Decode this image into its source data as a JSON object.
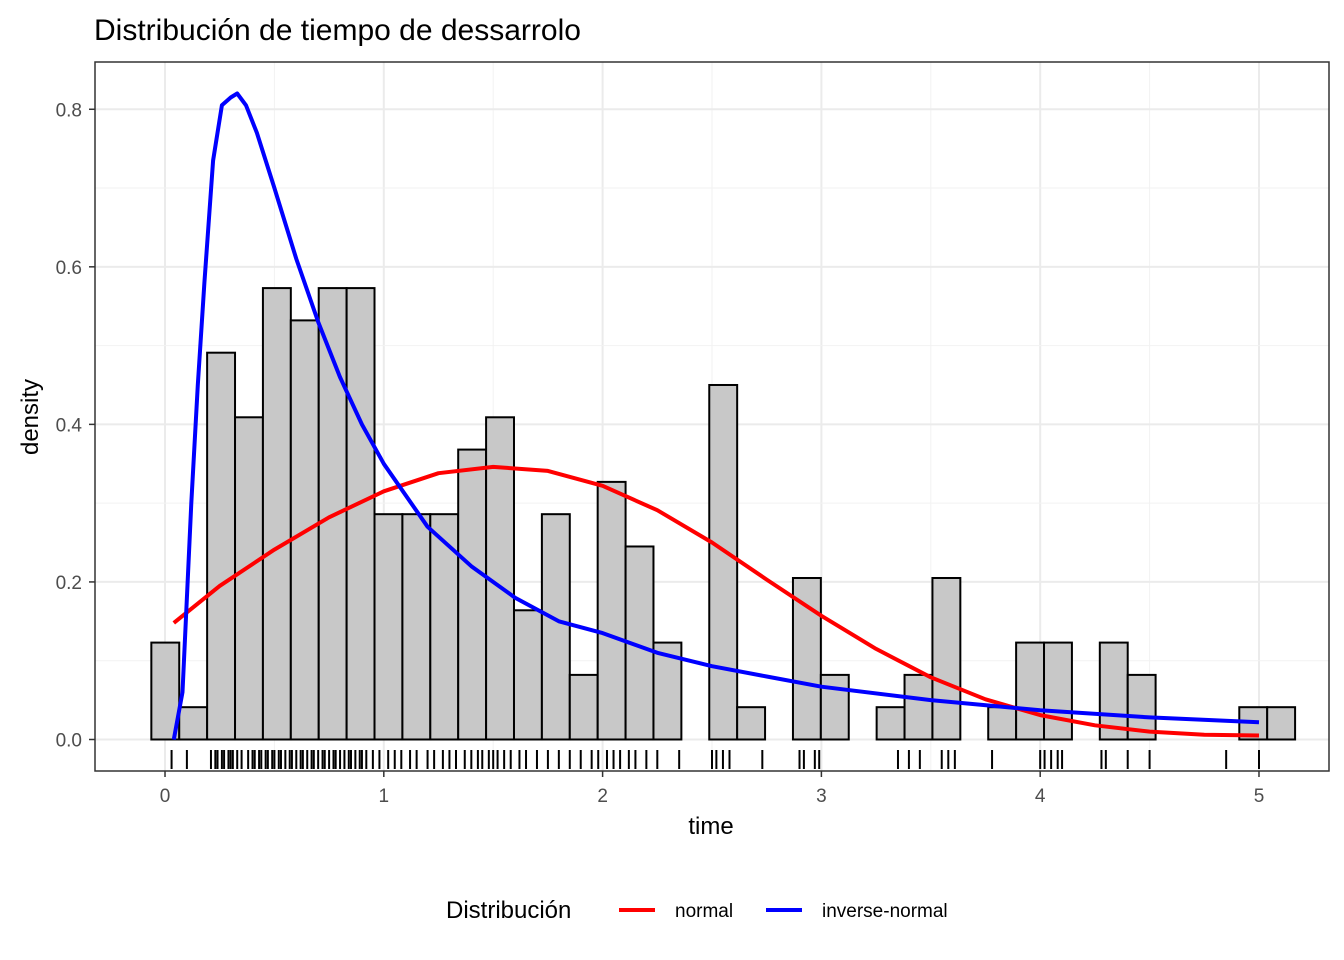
{
  "chart_data": {
    "type": "histogram",
    "title": "Distribución de tiempo de dessarrolo",
    "xlabel": "time",
    "ylabel": "density",
    "xlim": [
      -0.32,
      5.32
    ],
    "ylim": [
      -0.04,
      0.86
    ],
    "x_ticks": [
      0,
      1,
      2,
      3,
      4,
      5
    ],
    "x_tick_labels": [
      "0",
      "1",
      "2",
      "3",
      "4",
      "5"
    ],
    "y_ticks": [
      0.0,
      0.2,
      0.4,
      0.6,
      0.8
    ],
    "y_tick_labels": [
      "0.0",
      "0.2",
      "0.4",
      "0.6",
      "0.8"
    ],
    "grid": true,
    "legend": {
      "title": "Distribución",
      "position": "bottom",
      "entries": [
        {
          "name": "normal",
          "color": "#ff0000"
        },
        {
          "name": "inverse-normal",
          "color": "#0000ff"
        }
      ]
    },
    "histogram": {
      "fill": "#c8c8c8",
      "stroke": "#000000",
      "bin_width": 0.1275,
      "first_bin_left": -0.0625,
      "densities": [
        0.123,
        0.041,
        0.491,
        0.409,
        0.573,
        0.532,
        0.573,
        0.573,
        0.286,
        0.286,
        0.286,
        0.368,
        0.409,
        0.164,
        0.286,
        0.082,
        0.327,
        0.245,
        0.123,
        0.0,
        0.45,
        0.041,
        0.0,
        0.205,
        0.082,
        0.0,
        0.041,
        0.082,
        0.205,
        0.0,
        0.041,
        0.123,
        0.123,
        0.0,
        0.123,
        0.082,
        0.0,
        0.0,
        0.0,
        0.041,
        0.041
      ]
    },
    "series": [
      {
        "name": "normal",
        "color": "#ff0000",
        "x": [
          0.04,
          0.25,
          0.5,
          0.75,
          1.0,
          1.25,
          1.5,
          1.75,
          2.0,
          2.25,
          2.5,
          2.75,
          3.0,
          3.25,
          3.5,
          3.75,
          4.0,
          4.25,
          4.5,
          4.75,
          5.0
        ],
        "y": [
          0.148,
          0.195,
          0.241,
          0.282,
          0.315,
          0.338,
          0.346,
          0.341,
          0.322,
          0.291,
          0.25,
          0.203,
          0.157,
          0.115,
          0.079,
          0.051,
          0.031,
          0.018,
          0.01,
          0.006,
          0.005
        ]
      },
      {
        "name": "inverse-normal",
        "color": "#0000ff",
        "x": [
          0.04,
          0.08,
          0.12,
          0.15,
          0.18,
          0.22,
          0.26,
          0.3,
          0.33,
          0.37,
          0.42,
          0.5,
          0.6,
          0.7,
          0.8,
          0.9,
          1.0,
          1.2,
          1.4,
          1.6,
          1.8,
          2.0,
          2.25,
          2.5,
          2.75,
          3.0,
          3.5,
          4.0,
          4.5,
          5.0
        ],
        "y": [
          0.0,
          0.06,
          0.3,
          0.45,
          0.58,
          0.735,
          0.805,
          0.815,
          0.82,
          0.805,
          0.77,
          0.7,
          0.61,
          0.53,
          0.46,
          0.4,
          0.35,
          0.27,
          0.22,
          0.18,
          0.15,
          0.135,
          0.11,
          0.093,
          0.08,
          0.067,
          0.05,
          0.037,
          0.028,
          0.022
        ]
      }
    ],
    "rug": {
      "color": "#000000",
      "x": [
        0.03,
        0.1,
        0.21,
        0.23,
        0.24,
        0.26,
        0.27,
        0.29,
        0.3,
        0.31,
        0.33,
        0.35,
        0.38,
        0.4,
        0.41,
        0.43,
        0.44,
        0.46,
        0.47,
        0.49,
        0.5,
        0.52,
        0.53,
        0.55,
        0.57,
        0.58,
        0.6,
        0.62,
        0.63,
        0.65,
        0.67,
        0.68,
        0.7,
        0.72,
        0.73,
        0.75,
        0.77,
        0.78,
        0.8,
        0.82,
        0.84,
        0.85,
        0.87,
        0.89,
        0.9,
        0.92,
        0.95,
        0.98,
        1.02,
        1.05,
        1.08,
        1.12,
        1.15,
        1.2,
        1.23,
        1.27,
        1.3,
        1.33,
        1.37,
        1.4,
        1.43,
        1.45,
        1.48,
        1.5,
        1.52,
        1.55,
        1.58,
        1.62,
        1.65,
        1.7,
        1.75,
        1.8,
        1.85,
        1.9,
        1.95,
        1.98,
        2.02,
        2.05,
        2.08,
        2.12,
        2.15,
        2.2,
        2.25,
        2.35,
        2.5,
        2.52,
        2.55,
        2.58,
        2.73,
        2.9,
        2.92,
        2.97,
        2.99,
        3.35,
        3.4,
        3.45,
        3.55,
        3.58,
        3.61,
        3.78,
        4.0,
        4.02,
        4.05,
        4.08,
        4.1,
        4.28,
        4.3,
        4.4,
        4.5,
        4.85,
        5.0
      ]
    }
  }
}
